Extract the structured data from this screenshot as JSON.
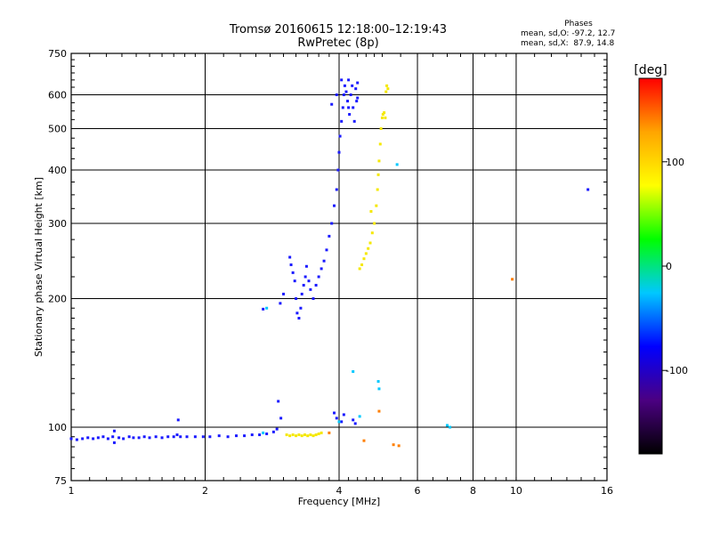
{
  "title": {
    "line1": "Tromsø 20160615 12:18:00–12:19:43",
    "line2": "RwPretec (8p)"
  },
  "phases_box": {
    "heading": "Phases",
    "line1": "mean, sd,O: -97.2, 12.7",
    "line2": "mean, sd,X:  87.9, 14.8"
  },
  "chart_data": {
    "type": "scatter",
    "xlabel": "Frequency [MHz]",
    "ylabel": "Stationary phase Virtual Height [km]",
    "x_scale": "log",
    "y_scale": "log",
    "xlim": [
      1,
      16
    ],
    "ylim": [
      75,
      750
    ],
    "x_ticks": [
      1,
      2,
      4,
      6,
      8,
      10,
      16
    ],
    "y_ticks": [
      75,
      100,
      200,
      300,
      400,
      500,
      600,
      750
    ],
    "extra_grid_x": [
      8,
      10
    ],
    "grid": true,
    "colorbar": {
      "label": "[deg]",
      "range": [
        -180,
        180
      ],
      "ticks": [
        100,
        0,
        -100
      ],
      "colors": [
        "#000000",
        "#4b0082",
        "#0000ff",
        "#00c8ff",
        "#00ff00",
        "#ffff00",
        "#ffa500",
        "#ff0000"
      ]
    },
    "series": [
      {
        "phase": -100,
        "color": "#1a1aff",
        "points": [
          [
            1.0,
            94
          ],
          [
            1.03,
            93.5
          ],
          [
            1.06,
            94
          ],
          [
            1.09,
            94.5
          ],
          [
            1.12,
            94
          ],
          [
            1.15,
            94.5
          ],
          [
            1.18,
            95
          ],
          [
            1.21,
            94
          ],
          [
            1.24,
            95
          ],
          [
            1.25,
            98
          ],
          [
            1.25,
            92
          ],
          [
            1.28,
            94.5
          ],
          [
            1.31,
            94
          ],
          [
            1.35,
            95
          ],
          [
            1.38,
            94.5
          ],
          [
            1.42,
            94.5
          ],
          [
            1.46,
            95
          ],
          [
            1.5,
            94.5
          ],
          [
            1.55,
            95
          ],
          [
            1.6,
            94.5
          ],
          [
            1.65,
            95
          ],
          [
            1.7,
            95
          ],
          [
            1.73,
            96
          ],
          [
            1.74,
            104
          ],
          [
            1.76,
            95
          ],
          [
            1.82,
            95
          ],
          [
            1.9,
            95
          ],
          [
            1.98,
            95
          ],
          [
            2.05,
            95
          ],
          [
            2.15,
            95.5
          ],
          [
            2.25,
            95
          ],
          [
            2.35,
            95.5
          ],
          [
            2.45,
            95.5
          ],
          [
            2.55,
            96
          ],
          [
            2.65,
            96
          ],
          [
            2.75,
            96.5
          ],
          [
            2.85,
            97.5
          ],
          [
            2.9,
            99
          ],
          [
            2.92,
            115
          ],
          [
            2.96,
            105
          ],
          [
            2.7,
            189
          ],
          [
            2.95,
            195
          ],
          [
            3.0,
            205
          ],
          [
            3.1,
            250
          ],
          [
            3.12,
            240
          ],
          [
            3.15,
            230
          ],
          [
            3.18,
            220
          ],
          [
            3.2,
            200
          ],
          [
            3.22,
            185
          ],
          [
            3.25,
            180
          ],
          [
            3.28,
            190
          ],
          [
            3.3,
            205
          ],
          [
            3.33,
            215
          ],
          [
            3.36,
            225
          ],
          [
            3.38,
            238
          ],
          [
            3.42,
            220
          ],
          [
            3.45,
            210
          ],
          [
            3.5,
            200
          ],
          [
            3.55,
            215
          ],
          [
            3.6,
            225
          ],
          [
            3.65,
            235
          ],
          [
            3.7,
            245
          ],
          [
            3.75,
            260
          ],
          [
            3.8,
            280
          ],
          [
            3.85,
            300
          ],
          [
            3.9,
            330
          ],
          [
            3.95,
            360
          ],
          [
            3.98,
            400
          ],
          [
            4.0,
            440
          ],
          [
            4.02,
            480
          ],
          [
            4.05,
            520
          ],
          [
            4.08,
            560
          ],
          [
            4.1,
            600
          ],
          [
            4.12,
            630
          ],
          [
            4.15,
            610
          ],
          [
            4.18,
            580
          ],
          [
            4.2,
            560
          ],
          [
            4.22,
            540
          ],
          [
            4.25,
            600
          ],
          [
            4.28,
            630
          ],
          [
            4.3,
            560
          ],
          [
            4.33,
            520
          ],
          [
            4.36,
            620
          ],
          [
            4.38,
            580
          ],
          [
            4.4,
            640
          ],
          [
            3.85,
            570
          ],
          [
            3.95,
            600
          ],
          [
            4.05,
            650
          ],
          [
            4.2,
            650
          ],
          [
            4.4,
            590
          ],
          [
            3.9,
            108
          ],
          [
            3.95,
            105
          ],
          [
            4.05,
            103
          ],
          [
            4.1,
            107
          ],
          [
            4.3,
            104
          ],
          [
            4.35,
            102
          ],
          [
            14.5,
            360
          ]
        ]
      },
      {
        "phase": -40,
        "color": "#00c8ff",
        "points": [
          [
            2.7,
            97
          ],
          [
            2.75,
            190
          ],
          [
            4.3,
            135
          ],
          [
            4.0,
            103
          ],
          [
            4.45,
            106
          ],
          [
            4.9,
            128
          ],
          [
            4.92,
            123
          ],
          [
            5.4,
            412
          ],
          [
            7.0,
            101
          ],
          [
            7.1,
            100
          ]
        ]
      },
      {
        "phase": 110,
        "color": "#f5e800",
        "points": [
          [
            3.05,
            96
          ],
          [
            3.1,
            95.5
          ],
          [
            3.15,
            96
          ],
          [
            3.2,
            95.5
          ],
          [
            3.25,
            96
          ],
          [
            3.3,
            95.5
          ],
          [
            3.35,
            96
          ],
          [
            3.4,
            95.5
          ],
          [
            3.45,
            96
          ],
          [
            3.5,
            95.5
          ],
          [
            3.55,
            96
          ],
          [
            3.6,
            96.5
          ],
          [
            3.65,
            97
          ],
          [
            4.45,
            235
          ],
          [
            4.5,
            240
          ],
          [
            4.55,
            248
          ],
          [
            4.6,
            255
          ],
          [
            4.65,
            262
          ],
          [
            4.7,
            270
          ],
          [
            4.75,
            285
          ],
          [
            4.8,
            300
          ],
          [
            4.85,
            330
          ],
          [
            4.88,
            360
          ],
          [
            4.9,
            390
          ],
          [
            4.92,
            420
          ],
          [
            4.95,
            460
          ],
          [
            4.97,
            500
          ],
          [
            5.0,
            530
          ],
          [
            5.02,
            540
          ],
          [
            5.05,
            545
          ],
          [
            5.08,
            530
          ],
          [
            5.1,
            610
          ],
          [
            5.12,
            630
          ],
          [
            5.15,
            620
          ],
          [
            4.72,
            320
          ]
        ]
      },
      {
        "phase": 150,
        "color": "#ff7f00",
        "points": [
          [
            4.55,
            93
          ],
          [
            4.92,
            109
          ],
          [
            5.3,
            91
          ],
          [
            5.45,
            90.5
          ],
          [
            9.8,
            222
          ],
          [
            3.8,
            97
          ]
        ]
      }
    ]
  }
}
